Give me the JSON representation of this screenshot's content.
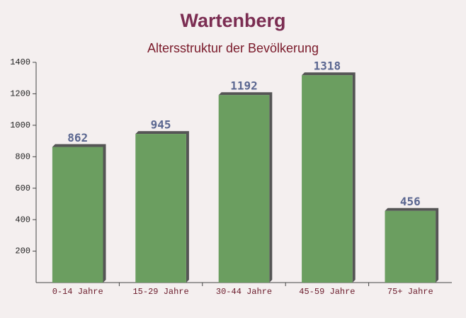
{
  "chart_data": {
    "type": "bar",
    "title": "Wartenberg",
    "subtitle": "Altersstruktur der Bevölkerung",
    "categories": [
      "0-14 Jahre",
      "15-29 Jahre",
      "30-44 Jahre",
      "45-59 Jahre",
      "75+ Jahre"
    ],
    "values": [
      862,
      945,
      1192,
      1318,
      456
    ],
    "color": "#6b9e60",
    "ylim": [
      0,
      1400
    ],
    "yticks": [
      200,
      400,
      600,
      800,
      1000,
      1200,
      1400
    ]
  }
}
